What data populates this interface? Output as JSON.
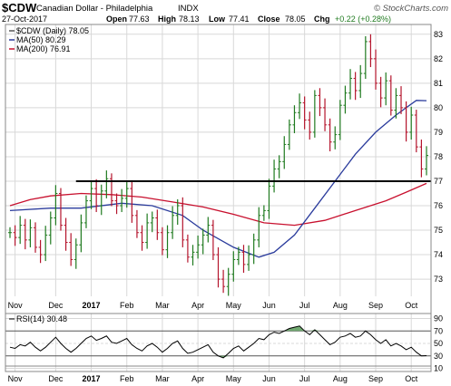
{
  "header": {
    "symbol": "$CDW",
    "name": "Canadian Dollar - Philadelphia",
    "exchange": "INDX",
    "date": "27-Oct-2017",
    "open_label": "Open",
    "open": "77.63",
    "high_label": "High",
    "high": "78.13",
    "low_label": "Low",
    "low": "77.41",
    "close_label": "Close",
    "close": "78.05",
    "chg_label": "Chg",
    "chg": "+0.22 (+0.28%)",
    "brand": "© StockCharts.com"
  },
  "legend": {
    "price": "$CDW (Daily) 78.05",
    "ma50": "MA(50) 80.29",
    "ma200": "MA(200) 76.91",
    "rsi": "RSI(14) 30.48"
  },
  "colors": {
    "up": "#1f7a1f",
    "down": "#b4142c",
    "ma50": "#2a3b9c",
    "ma200": "#c8102e",
    "support": "#000000",
    "grid": "#d8d8d8",
    "rsi_fill": "#6fa86f"
  },
  "chart_data": [
    {
      "type": "line",
      "title": "$CDW Canadian Dollar - Philadelphia INDX",
      "x_labels": [
        "Nov",
        "Dec",
        "2017",
        "Feb",
        "Mar",
        "Apr",
        "May",
        "Jun",
        "Jul",
        "Aug",
        "Sep",
        "Oct"
      ],
      "ylim": [
        72.3,
        83.4
      ],
      "y_ticks": [
        73,
        74,
        75,
        76,
        77,
        78,
        79,
        80,
        81,
        82,
        83
      ],
      "support_level": 77.0,
      "series": [
        {
          "name": "$CDW (Daily) 78.05",
          "style": "ohlc",
          "values": [
            74.9,
            74.7,
            75.2,
            74.6,
            75.1,
            74.3,
            74.0,
            74.8,
            75.5,
            76.5,
            75.2,
            74.5,
            73.8,
            74.4,
            75.3,
            76.2,
            76.7,
            76.0,
            76.6,
            77.1,
            76.2,
            76.0,
            76.3,
            76.7,
            75.6,
            74.9,
            74.5,
            75.3,
            75.5,
            74.9,
            74.2,
            74.9,
            75.6,
            76.0,
            74.6,
            73.9,
            74.1,
            74.4,
            74.8,
            75.2,
            74.0,
            73.0,
            72.7,
            73.2,
            73.8,
            74.1,
            73.6,
            74.0,
            74.6,
            75.6,
            75.8,
            76.8,
            77.5,
            77.8,
            78.5,
            79.3,
            79.8,
            80.2,
            79.5,
            79.0,
            80.5,
            80.0,
            79.3,
            78.6,
            78.9,
            80.1,
            80.6,
            81.2,
            80.7,
            81.4,
            82.7,
            82.0,
            81.0,
            80.4,
            81.1,
            79.9,
            80.5,
            80.0,
            79.0,
            79.7,
            78.4,
            77.5,
            78.05
          ]
        },
        {
          "name": "MA(50) 80.29",
          "values": [
            [
              0,
              75.8
            ],
            [
              8,
              75.9
            ],
            [
              14,
              75.9
            ],
            [
              22,
              76.1
            ],
            [
              28,
              76.0
            ],
            [
              34,
              75.6
            ],
            [
              38,
              75.0
            ],
            [
              44,
              74.3
            ],
            [
              49,
              73.9
            ],
            [
              52,
              74.1
            ],
            [
              56,
              74.8
            ],
            [
              60,
              75.9
            ],
            [
              64,
              77.0
            ],
            [
              68,
              78.1
            ],
            [
              72,
              79.0
            ],
            [
              76,
              79.7
            ],
            [
              78,
              80.0
            ],
            [
              80,
              80.3
            ],
            [
              82,
              80.29
            ]
          ]
        },
        {
          "name": "MA(200) 76.91",
          "values": [
            [
              0,
              76.0
            ],
            [
              4,
              76.25
            ],
            [
              8,
              76.4
            ],
            [
              14,
              76.5
            ],
            [
              20,
              76.45
            ],
            [
              26,
              76.35
            ],
            [
              32,
              76.15
            ],
            [
              38,
              75.95
            ],
            [
              44,
              75.65
            ],
            [
              50,
              75.3
            ],
            [
              56,
              75.2
            ],
            [
              62,
              75.4
            ],
            [
              68,
              75.8
            ],
            [
              74,
              76.2
            ],
            [
              78,
              76.55
            ],
            [
              82,
              76.91
            ]
          ]
        }
      ]
    },
    {
      "type": "area",
      "title": "RSI(14) 30.48",
      "ylim": [
        5,
        98
      ],
      "y_ticks": [
        10,
        30,
        50,
        70,
        90
      ],
      "thresholds": [
        30,
        70
      ],
      "series": [
        {
          "name": "RSI(14) 30.48",
          "values": [
            44,
            42,
            48,
            46,
            52,
            44,
            38,
            44,
            52,
            60,
            50,
            42,
            36,
            42,
            50,
            58,
            62,
            55,
            58,
            62,
            52,
            50,
            54,
            58,
            48,
            42,
            38,
            46,
            50,
            44,
            36,
            42,
            50,
            54,
            42,
            34,
            36,
            40,
            44,
            48,
            36,
            30,
            27,
            34,
            42,
            46,
            38,
            44,
            50,
            58,
            56,
            64,
            68,
            66,
            70,
            74,
            76,
            78,
            70,
            64,
            72,
            64,
            56,
            48,
            52,
            60,
            62,
            66,
            60,
            62,
            70,
            64,
            56,
            50,
            56,
            46,
            50,
            46,
            40,
            44,
            36,
            30,
            30.48
          ]
        }
      ]
    }
  ]
}
